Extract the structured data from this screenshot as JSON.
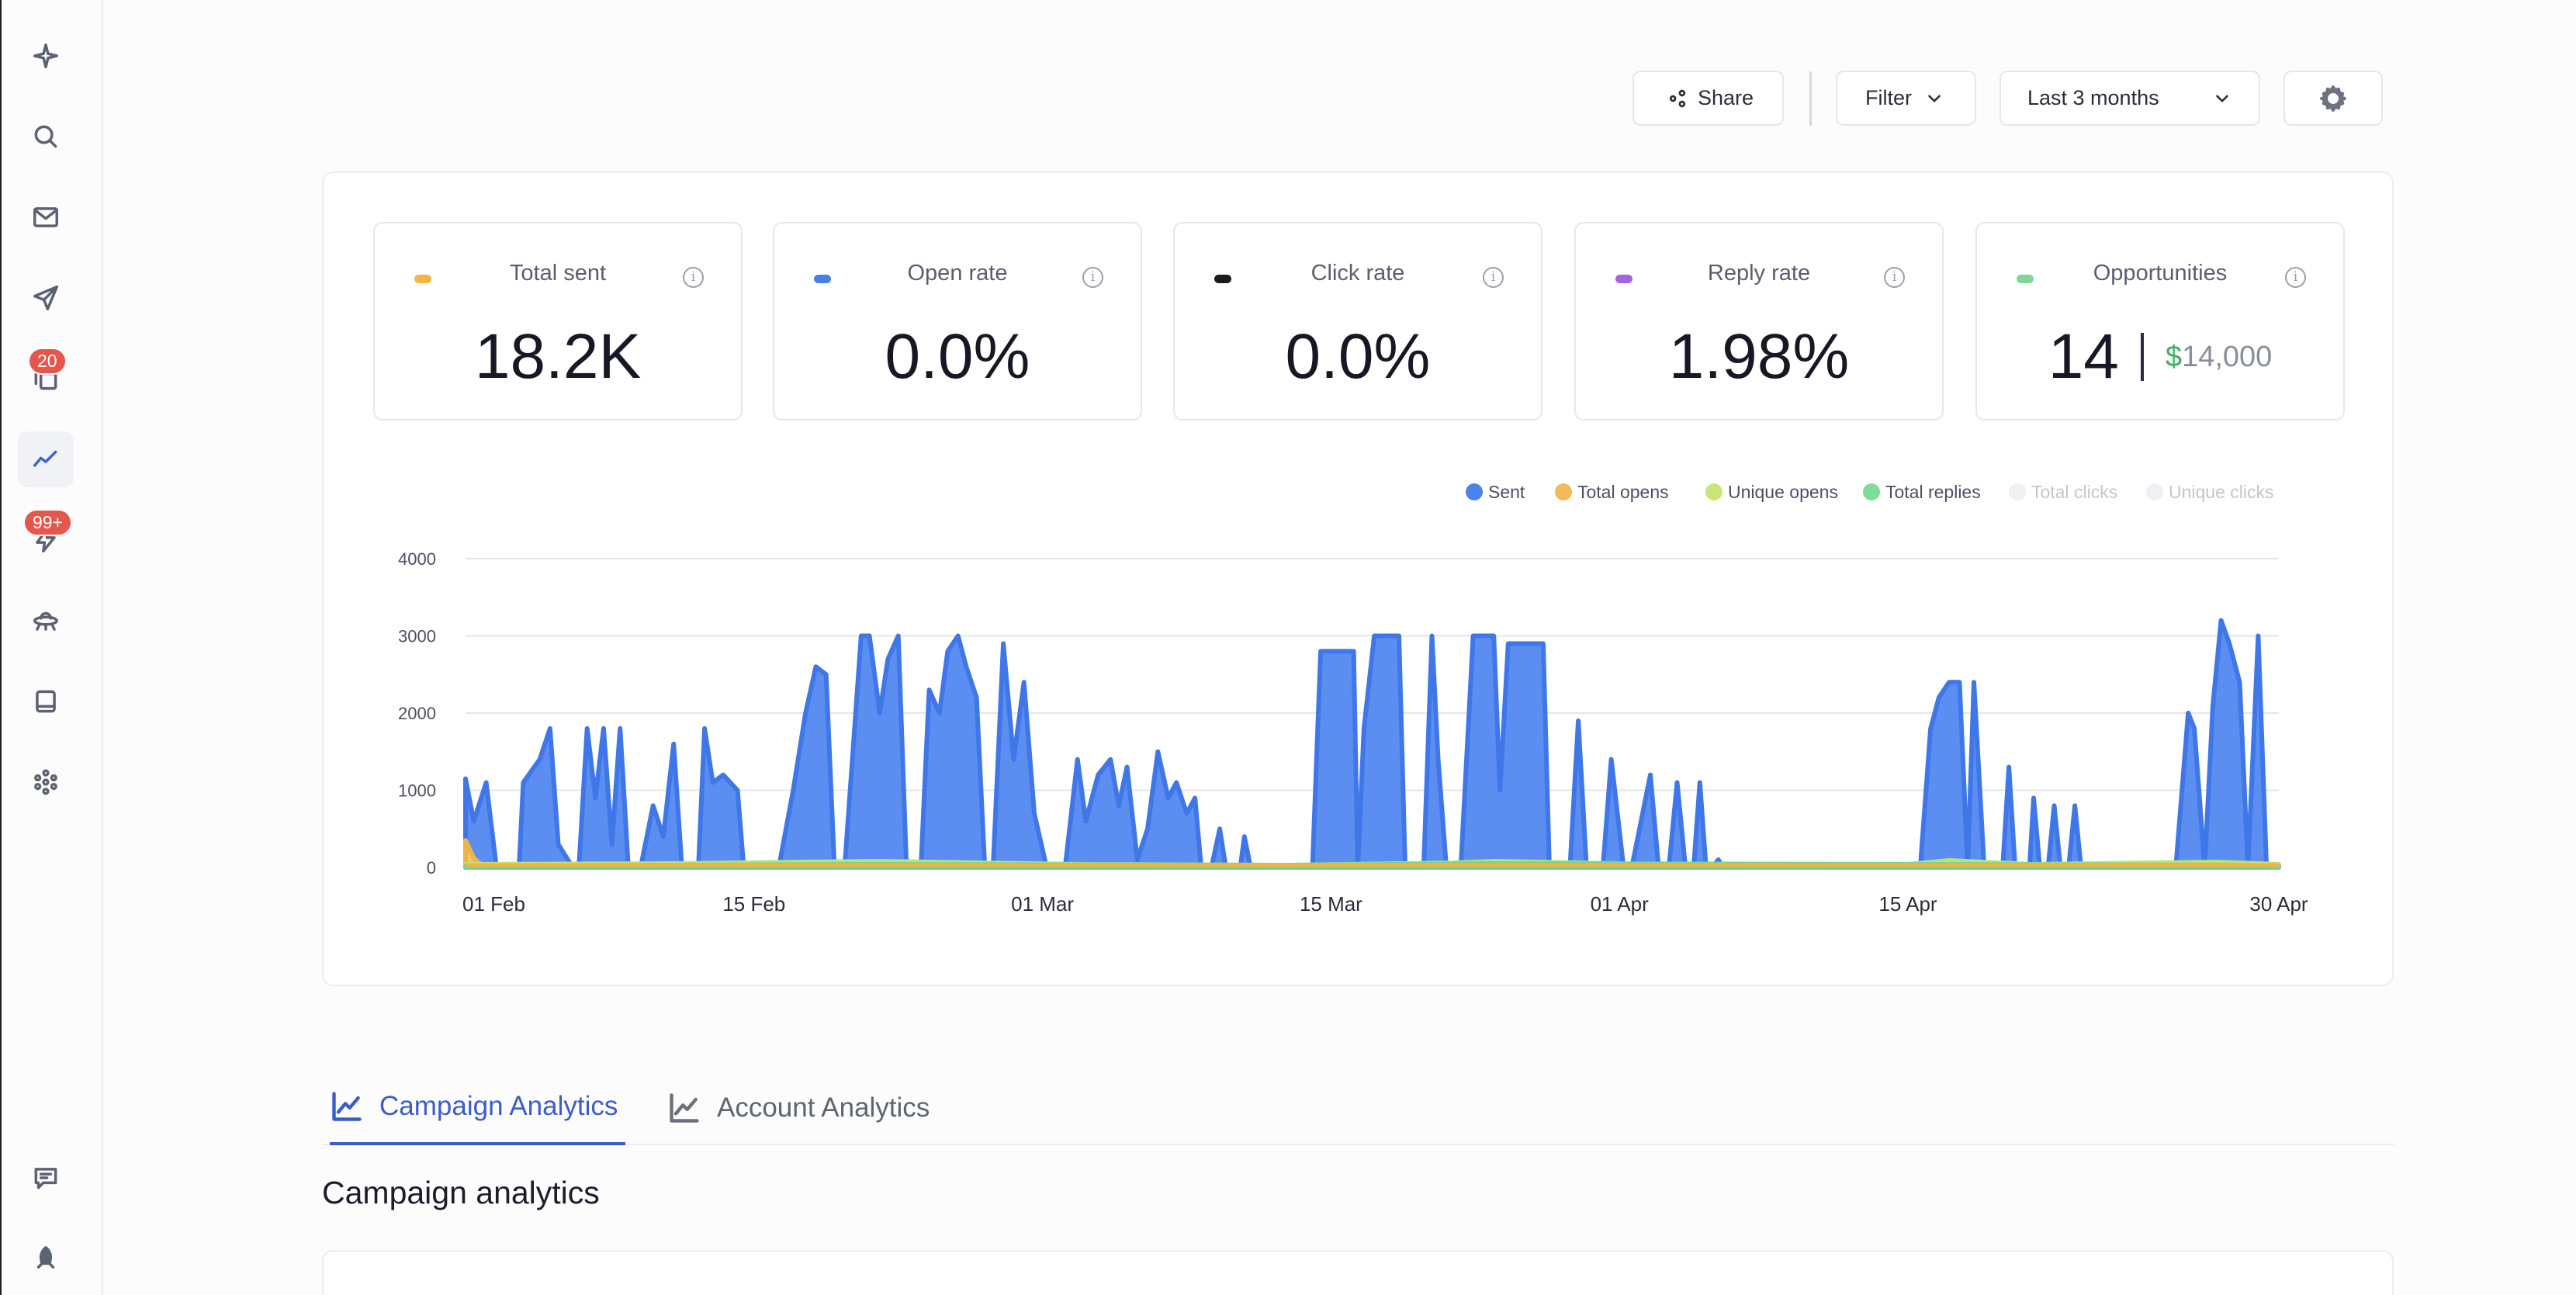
{
  "sidebar": {
    "icons": [
      "sparkle-icon",
      "search-icon",
      "mail-icon",
      "send-icon",
      "copy-icon",
      "analytics-icon",
      "zap-icon",
      "ufo-icon",
      "inbox-icon",
      "apps-icon",
      "feedback-icon",
      "rocket-icon"
    ],
    "badge_copy": "20",
    "badge_zap": "99+"
  },
  "toolbar": {
    "share_label": "Share",
    "filter_label": "Filter",
    "date_range": "Last 3 months"
  },
  "stats": [
    {
      "label": "Total sent",
      "value": "18.2K",
      "color": "#f3b63f"
    },
    {
      "label": "Open rate",
      "value": "0.0%",
      "color": "#4a7fe6"
    },
    {
      "label": "Click rate",
      "value": "0.0%",
      "color": "#1b1b1b"
    },
    {
      "label": "Reply rate",
      "value": "1.98%",
      "color": "#a564e8"
    },
    {
      "label": "Opportunities",
      "count": "14",
      "currency": "$",
      "amount": "14,000",
      "color": "#7ed69a"
    }
  ],
  "chart_data": {
    "type": "area",
    "legend": [
      {
        "name": "Sent",
        "color": "#4a84ea",
        "active": true
      },
      {
        "name": "Total opens",
        "color": "#f3b95a",
        "active": true
      },
      {
        "name": "Unique opens",
        "color": "#c9e577",
        "active": true
      },
      {
        "name": "Total replies",
        "color": "#7fdc9a",
        "active": true
      },
      {
        "name": "Total clicks",
        "color": "#eef0f4",
        "active": false
      },
      {
        "name": "Unique clicks",
        "color": "#eef0f4",
        "active": false
      }
    ],
    "ylim": [
      0,
      4000
    ],
    "yticks": [
      "0",
      "1000",
      "2000",
      "3000",
      "4000"
    ],
    "xticks": [
      "01 Feb",
      "15 Feb",
      "01 Mar",
      "15 Mar",
      "01 Apr",
      "15 Apr",
      "30 Apr"
    ],
    "xtick_days": [
      0,
      14,
      28,
      42,
      56,
      70,
      88
    ],
    "x_range_days": [
      0,
      88
    ],
    "series": [
      {
        "name": "Sent",
        "points": [
          [
            0,
            1150
          ],
          [
            0.4,
            600
          ],
          [
            1,
            1100
          ],
          [
            1.5,
            0
          ],
          [
            2.6,
            0
          ],
          [
            2.8,
            1100
          ],
          [
            3.6,
            1400
          ],
          [
            4.1,
            1800
          ],
          [
            4.5,
            300
          ],
          [
            5.2,
            0
          ],
          [
            5.5,
            0
          ],
          [
            5.9,
            1800
          ],
          [
            6.3,
            900
          ],
          [
            6.7,
            1800
          ],
          [
            7.1,
            300
          ],
          [
            7.5,
            1800
          ],
          [
            7.9,
            0
          ],
          [
            8.5,
            0
          ],
          [
            9.1,
            800
          ],
          [
            9.6,
            400
          ],
          [
            10.1,
            1600
          ],
          [
            10.5,
            0
          ],
          [
            11.3,
            0
          ],
          [
            11.6,
            1800
          ],
          [
            12,
            1100
          ],
          [
            12.5,
            1200
          ],
          [
            13.2,
            1000
          ],
          [
            13.5,
            0
          ],
          [
            15.2,
            0
          ],
          [
            15.9,
            1000
          ],
          [
            16.5,
            2000
          ],
          [
            17,
            2600
          ],
          [
            17.5,
            2500
          ],
          [
            17.9,
            0
          ],
          [
            18.4,
            0
          ],
          [
            19.2,
            3000
          ],
          [
            19.6,
            3000
          ],
          [
            20.1,
            2000
          ],
          [
            20.5,
            2700
          ],
          [
            21,
            3000
          ],
          [
            21.4,
            0
          ],
          [
            22.1,
            0
          ],
          [
            22.5,
            2300
          ],
          [
            23,
            2000
          ],
          [
            23.4,
            2800
          ],
          [
            23.9,
            3000
          ],
          [
            24.3,
            2600
          ],
          [
            24.8,
            2200
          ],
          [
            25.2,
            0
          ],
          [
            25.6,
            0
          ],
          [
            26.1,
            2900
          ],
          [
            26.6,
            1400
          ],
          [
            27.1,
            2400
          ],
          [
            27.6,
            700
          ],
          [
            28.2,
            0
          ],
          [
            29.1,
            0
          ],
          [
            29.7,
            1400
          ],
          [
            30.1,
            600
          ],
          [
            30.7,
            1200
          ],
          [
            31.3,
            1400
          ],
          [
            31.7,
            800
          ],
          [
            32.1,
            1300
          ],
          [
            32.6,
            100
          ],
          [
            33.1,
            500
          ],
          [
            33.6,
            1500
          ],
          [
            34.1,
            900
          ],
          [
            34.5,
            1100
          ],
          [
            35,
            700
          ],
          [
            35.4,
            900
          ],
          [
            35.7,
            0
          ],
          [
            36.2,
            0
          ],
          [
            36.6,
            500
          ],
          [
            36.9,
            0
          ],
          [
            37.6,
            0
          ],
          [
            37.8,
            400
          ],
          [
            38.1,
            0
          ],
          [
            41.1,
            0
          ],
          [
            41.5,
            2800
          ],
          [
            42.3,
            2800
          ],
          [
            43.1,
            2800
          ],
          [
            43.3,
            0
          ],
          [
            43.6,
            1800
          ],
          [
            44.1,
            3000
          ],
          [
            45.3,
            3000
          ],
          [
            45.6,
            0
          ],
          [
            46.5,
            0
          ],
          [
            46.9,
            3000
          ],
          [
            47.2,
            1400
          ],
          [
            47.6,
            0
          ],
          [
            48.3,
            0
          ],
          [
            48.9,
            3000
          ],
          [
            49.9,
            3000
          ],
          [
            50.2,
            1000
          ],
          [
            50.6,
            2900
          ],
          [
            52.3,
            2900
          ],
          [
            52.6,
            0
          ],
          [
            53.6,
            0
          ],
          [
            54,
            1900
          ],
          [
            54.4,
            0
          ],
          [
            55.2,
            0
          ],
          [
            55.6,
            1400
          ],
          [
            56.2,
            0
          ],
          [
            56.6,
            0
          ],
          [
            57.5,
            1200
          ],
          [
            57.9,
            0
          ],
          [
            58.4,
            0
          ],
          [
            58.8,
            1100
          ],
          [
            59.2,
            0
          ],
          [
            59.6,
            0
          ],
          [
            59.9,
            1100
          ],
          [
            60.2,
            0
          ],
          [
            60.5,
            0
          ],
          [
            60.8,
            100
          ],
          [
            61,
            0
          ],
          [
            70.6,
            0
          ],
          [
            71.1,
            1800
          ],
          [
            71.5,
            2200
          ],
          [
            72,
            2400
          ],
          [
            72.5,
            2400
          ],
          [
            72.9,
            0
          ],
          [
            73.2,
            2400
          ],
          [
            73.7,
            0
          ],
          [
            74.6,
            0
          ],
          [
            74.9,
            1300
          ],
          [
            75.2,
            0
          ],
          [
            75.9,
            0
          ],
          [
            76.1,
            900
          ],
          [
            76.4,
            0
          ],
          [
            76.8,
            0
          ],
          [
            77.1,
            800
          ],
          [
            77.4,
            0
          ],
          [
            77.8,
            0
          ],
          [
            78.1,
            800
          ],
          [
            78.4,
            0
          ],
          [
            83,
            0
          ],
          [
            83.6,
            2000
          ],
          [
            83.9,
            1800
          ],
          [
            84.4,
            0
          ],
          [
            84.8,
            2100
          ],
          [
            85.2,
            3200
          ],
          [
            85.6,
            2900
          ],
          [
            86.1,
            2400
          ],
          [
            86.5,
            0
          ],
          [
            87,
            3000
          ],
          [
            87.4,
            0
          ]
        ]
      },
      {
        "name": "Total opens",
        "points": [
          [
            0,
            350
          ],
          [
            0.4,
            120
          ],
          [
            0.8,
            30
          ],
          [
            88,
            30
          ]
        ]
      },
      {
        "name": "Unique opens",
        "points": [
          [
            0,
            40
          ],
          [
            10,
            50
          ],
          [
            20,
            80
          ],
          [
            30,
            40
          ],
          [
            40,
            30
          ],
          [
            48,
            60
          ],
          [
            50,
            80
          ],
          [
            60,
            30
          ],
          [
            70,
            40
          ],
          [
            72,
            90
          ],
          [
            76,
            40
          ],
          [
            85,
            70
          ],
          [
            88,
            40
          ]
        ]
      },
      {
        "name": "Total replies",
        "points": [
          [
            0,
            20
          ],
          [
            20,
            40
          ],
          [
            40,
            30
          ],
          [
            50,
            50
          ],
          [
            72,
            40
          ],
          [
            85,
            30
          ],
          [
            88,
            20
          ]
        ]
      }
    ]
  },
  "tabs": [
    {
      "label": "Campaign Analytics",
      "active": true
    },
    {
      "label": "Account Analytics",
      "active": false
    }
  ],
  "section_title": "Campaign analytics"
}
